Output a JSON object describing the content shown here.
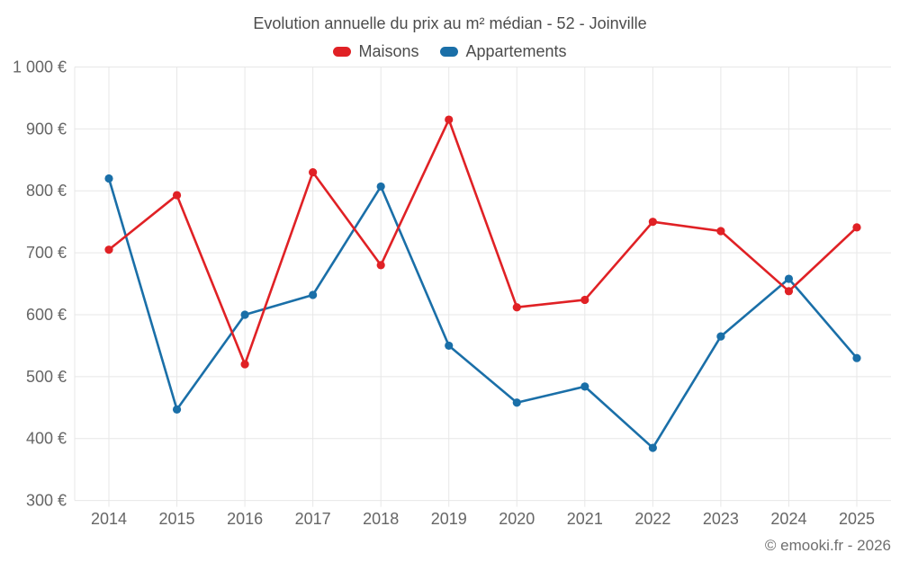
{
  "title": "Evolution annuelle du prix au m² médian - 52 - Joinville",
  "footer": "© emooki.fr - 2026",
  "legend": [
    {
      "label": "Maisons",
      "color": "#e02125"
    },
    {
      "label": "Appartements",
      "color": "#1a6fa8"
    }
  ],
  "colors": {
    "maisons": "#e02125",
    "appartements": "#1a6fa8",
    "gridline": "#e7e7e7",
    "axis_label": "#666666",
    "title_text": "#4c4c4c",
    "footer_text": "#6f6f6f"
  },
  "chart_data": {
    "type": "line",
    "title": "Evolution annuelle du prix au m² médian - 52 - Joinville",
    "categories": [
      "2014",
      "2015",
      "2016",
      "2017",
      "2018",
      "2019",
      "2020",
      "2021",
      "2022",
      "2023",
      "2024",
      "2025"
    ],
    "series": [
      {
        "name": "Maisons",
        "color": "#e02125",
        "values": [
          705,
          793,
          520,
          830,
          680,
          915,
          612,
          624,
          750,
          735,
          638,
          741
        ]
      },
      {
        "name": "Appartements",
        "color": "#1a6fa8",
        "values": [
          820,
          447,
          600,
          632,
          807,
          550,
          458,
          484,
          385,
          565,
          658,
          530
        ]
      }
    ],
    "xlabel": "",
    "ylabel": "",
    "ylim": [
      300,
      1000
    ],
    "ytick_step": 100,
    "ytick_suffix": "€",
    "grid": true,
    "legend_position": "top",
    "point_markers": true
  }
}
